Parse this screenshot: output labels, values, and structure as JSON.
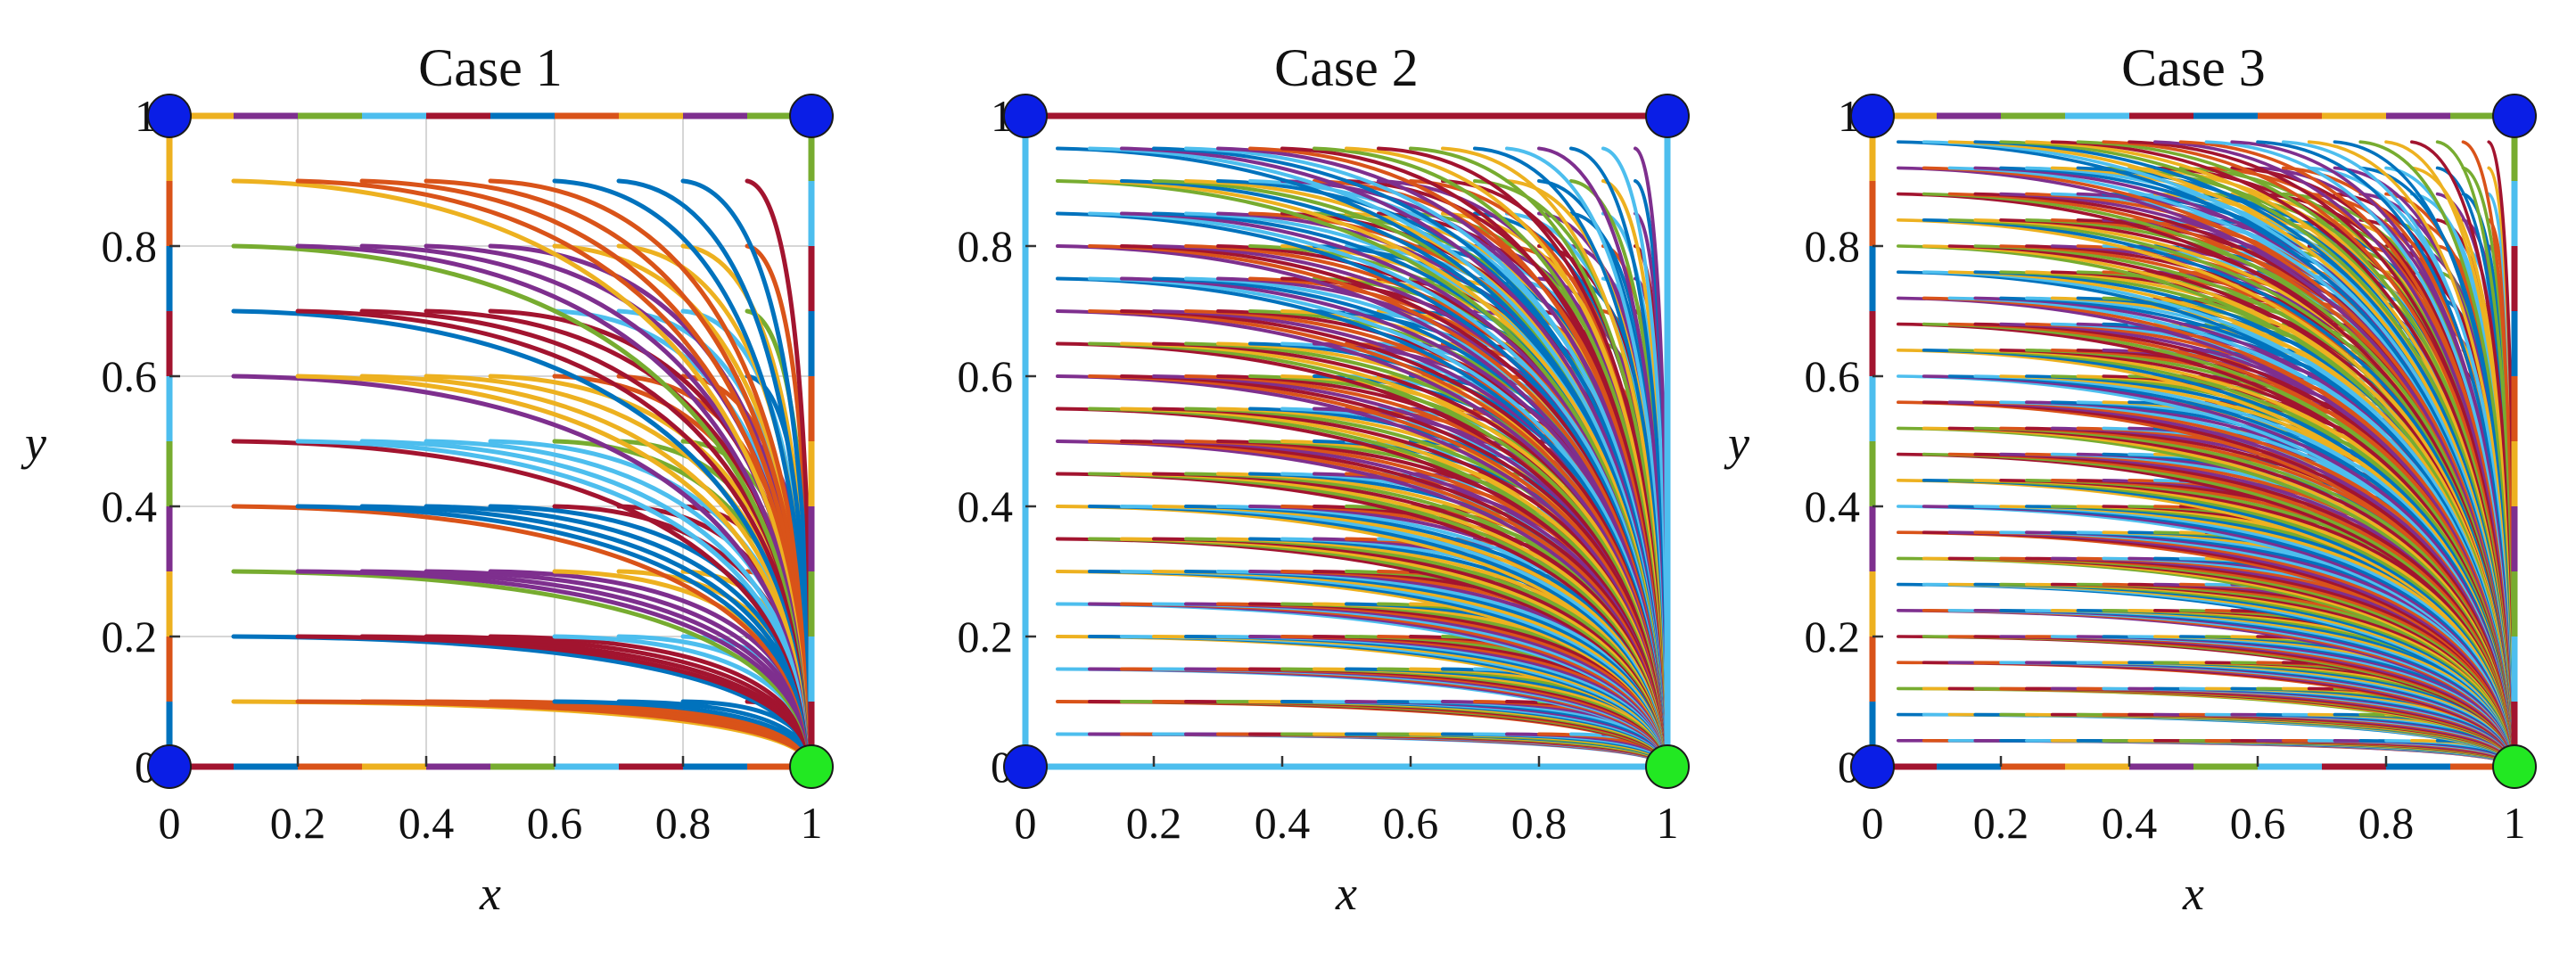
{
  "chart_data": [
    {
      "type": "line",
      "title": "Case 1",
      "xlabel": "x",
      "ylabel": "y",
      "xlim": [
        0,
        1
      ],
      "ylim": [
        0,
        1
      ],
      "x_ticks": [
        "0",
        "0.2",
        "0.4",
        "0.6",
        "0.8",
        "1"
      ],
      "y_ticks": [
        "0",
        "0.2",
        "0.4",
        "0.6",
        "0.8",
        "1"
      ],
      "grid": true,
      "target_node": [
        1,
        0
      ],
      "corner_nodes": [
        [
          0,
          0
        ],
        [
          0,
          1
        ],
        [
          1,
          1
        ]
      ],
      "boundary_style": "dashed",
      "start_points": "grid from 0.1 to 0.9 in steps of 0.1",
      "start_spacing": 0.1,
      "start_min": 0.1,
      "start_max": 0.9,
      "trajectory_curve": "convex arcs from each start point to (1, 0)"
    },
    {
      "type": "line",
      "title": "Case 2",
      "xlabel": "x",
      "ylabel": "",
      "xlim": [
        0,
        1
      ],
      "ylim": [
        0,
        1
      ],
      "x_ticks": [
        "0",
        "0.2",
        "0.4",
        "0.6",
        "0.8",
        "1"
      ],
      "y_ticks": [
        "0",
        "0.2",
        "0.4",
        "0.6",
        "0.8",
        "1"
      ],
      "grid": false,
      "target_node": [
        1,
        0
      ],
      "corner_nodes": [
        [
          0,
          0
        ],
        [
          0,
          1
        ],
        [
          1,
          1
        ]
      ],
      "boundary_style": "solid",
      "start_points": "grid from 0.05 to 0.95 in steps of 0.05",
      "start_spacing": 0.05,
      "start_min": 0.05,
      "start_max": 0.95,
      "trajectory_curve": "convex arcs from each start point to (1, 0)"
    },
    {
      "type": "line",
      "title": "Case 3",
      "xlabel": "x",
      "ylabel": "y",
      "xlim": [
        0,
        1
      ],
      "ylim": [
        0,
        1
      ],
      "x_ticks": [
        "0",
        "0.2",
        "0.4",
        "0.6",
        "0.8",
        "1"
      ],
      "y_ticks": [
        "0",
        "0.2",
        "0.4",
        "0.6",
        "0.8",
        "1"
      ],
      "grid": false,
      "target_node": [
        1,
        0
      ],
      "corner_nodes": [
        [
          0,
          0
        ],
        [
          0,
          1
        ],
        [
          1,
          1
        ]
      ],
      "boundary_style": "dashed",
      "start_points": "grid from 0.04 to 0.96 in steps of 0.04",
      "start_spacing": 0.04,
      "start_min": 0.04,
      "start_max": 0.96,
      "trajectory_curve": "convex arcs from each start point to (1, 0)"
    }
  ],
  "colors": {
    "series_cycle": [
      "#0072BD",
      "#D95319",
      "#EDB120",
      "#7E2F8E",
      "#77AC30",
      "#4DBEEE",
      "#A2142F"
    ],
    "corner_node": "#0A1EE6",
    "target_node": "#22E822",
    "grid": "#d6d6d6",
    "text": "#111111"
  }
}
